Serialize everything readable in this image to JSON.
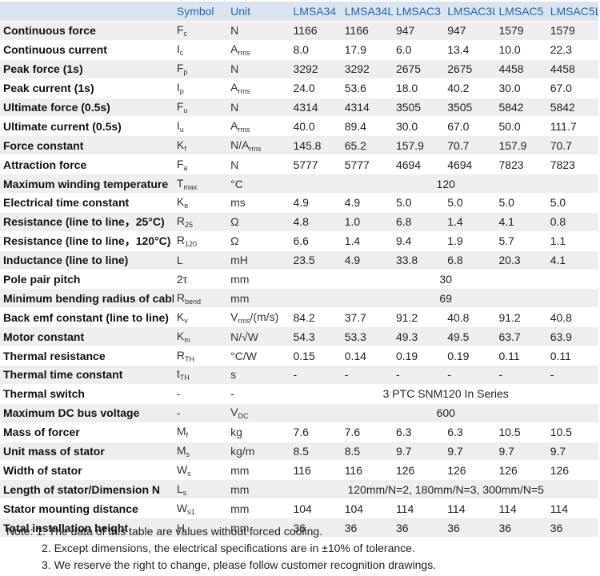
{
  "header": {
    "param": "",
    "symbol": "Symbol",
    "unit": "Unit",
    "models": [
      "LMSA34",
      "LMSA34L",
      "LMSAC3",
      "LMSAC3L",
      "LMSAC5",
      "LMSAC5L"
    ]
  },
  "rows": [
    {
      "param": "Continuous force",
      "sym": "F",
      "sub": "c",
      "unit": "N",
      "unit_sub": "",
      "values": [
        "1166",
        "1166",
        "947",
        "947",
        "1579",
        "1579"
      ]
    },
    {
      "param": "Continuous current",
      "sym": "I",
      "sub": "c",
      "unit": "A",
      "unit_sub": "rms",
      "values": [
        "8.0",
        "17.9",
        "6.0",
        "13.4",
        "10.0",
        "22.3"
      ]
    },
    {
      "param": "Peak force (1s)",
      "sym": "F",
      "sub": "p",
      "unit": "N",
      "unit_sub": "",
      "values": [
        "3292",
        "3292",
        "2675",
        "2675",
        "4458",
        "4458"
      ]
    },
    {
      "param": "Peak current (1s)",
      "sym": "I",
      "sub": "p",
      "unit": "A",
      "unit_sub": "rms",
      "values": [
        "24.0",
        "53.6",
        "18.0",
        "40.2",
        "30.0",
        "67.0"
      ]
    },
    {
      "param": "Ultimate force (0.5s)",
      "sym": "F",
      "sub": "u",
      "unit": "N",
      "unit_sub": "",
      "values": [
        "4314",
        "4314",
        "3505",
        "3505",
        "5842",
        "5842"
      ]
    },
    {
      "param": "Ultimate current (0.5s)",
      "sym": "I",
      "sub": "u",
      "unit": "A",
      "unit_sub": "rms",
      "values": [
        "40.0",
        "89.4",
        "30.0",
        "67.0",
        "50.0",
        "111.7"
      ]
    },
    {
      "param": "Force constant",
      "sym": "K",
      "sub": "f",
      "unit": "N/A",
      "unit_sub": "rms",
      "values": [
        "145.8",
        "65.2",
        "157.9",
        "70.7",
        "157.9",
        "70.7"
      ]
    },
    {
      "param": "Attraction force",
      "sym": "F",
      "sub": "a",
      "unit": "N",
      "unit_sub": "",
      "values": [
        "5777",
        "5777",
        "4694",
        "4694",
        "7823",
        "7823"
      ]
    },
    {
      "param": "Maximum winding temperature",
      "sym": "T",
      "sub": "max",
      "unit": "°C",
      "unit_sub": "",
      "span": "120"
    },
    {
      "param": "Electrical time constant",
      "sym": "K",
      "sub": "e",
      "unit": "ms",
      "unit_sub": "",
      "values": [
        "4.9",
        "4.9",
        "5.0",
        "5.0",
        "5.0",
        "5.0"
      ]
    },
    {
      "param": "Resistance (line to line，25°C)",
      "sym": "R",
      "sub": "25",
      "unit": "Ω",
      "unit_sub": "",
      "values": [
        "4.8",
        "1.0",
        "6.8",
        "1.4",
        "4.1",
        "0.8"
      ]
    },
    {
      "param": "Resistance (line to line，120°C)",
      "sym": "R",
      "sub": "120",
      "unit": "Ω",
      "unit_sub": "",
      "values": [
        "6.6",
        "1.4",
        "9.4",
        "1.9",
        "5.7",
        "1.1"
      ]
    },
    {
      "param": "Inductance (line to line)",
      "sym": "L",
      "sub": "",
      "unit": "mH",
      "unit_sub": "",
      "values": [
        "23.5",
        "4.9",
        "33.8",
        "6.8",
        "20.3",
        "4.1"
      ]
    },
    {
      "param": "Pole pair pitch",
      "sym": "2τ",
      "sub": "",
      "unit": "mm",
      "unit_sub": "",
      "span": "30"
    },
    {
      "param": "Minimum bending radius of cable",
      "sym": "R",
      "sub": "bend",
      "unit": "mm",
      "unit_sub": "",
      "span": "69"
    },
    {
      "param": "Back emf constant (line to line)",
      "sym": "K",
      "sub": "v",
      "unit": "V",
      "unit_sub": "rms",
      "unit_tail": "/(m/s)",
      "values": [
        "84.2",
        "37.7",
        "91.2",
        "40.8",
        "91.2",
        "40.8"
      ]
    },
    {
      "param": "Motor constant",
      "sym": "K",
      "sub": "m",
      "unit": "N/√W",
      "unit_sub": "",
      "values": [
        "54.3",
        "53.3",
        "49.3",
        "49.5",
        "63.7",
        "63.9"
      ]
    },
    {
      "param": "Thermal resistance",
      "sym": "R",
      "sub": "TH",
      "unit": "°C/W",
      "unit_sub": "",
      "values": [
        "0.15",
        "0.14",
        "0.19",
        "0.19",
        "0.11",
        "0.11"
      ]
    },
    {
      "param": "Thermal time constant",
      "sym": "t",
      "sub": "TH",
      "unit": "s",
      "unit_sub": "",
      "values": [
        "-",
        "-",
        "-",
        "-",
        "-",
        "-"
      ]
    },
    {
      "param": "Thermal switch",
      "sym": "-",
      "sub": "",
      "unit": "-",
      "unit_sub": "",
      "span": "3 PTC SNM120 In Series"
    },
    {
      "param": "Maximum DC bus voltage",
      "sym": "-",
      "sub": "",
      "unit": "V",
      "unit_sub": "DC",
      "span": "600"
    },
    {
      "param": "Mass of forcer",
      "sym": "M",
      "sub": "f",
      "unit": "kg",
      "unit_sub": "",
      "values": [
        "7.6",
        "7.6",
        "6.3",
        "6.3",
        "10.5",
        "10.5"
      ]
    },
    {
      "param": "Unit mass of stator",
      "sym": "M",
      "sub": "s",
      "unit": "kg/m",
      "unit_sub": "",
      "values": [
        "8.5",
        "8.5",
        "9.7",
        "9.7",
        "9.7",
        "9.7"
      ]
    },
    {
      "param": "Width of stator",
      "sym": "W",
      "sub": "s",
      "unit": "mm",
      "unit_sub": "",
      "values": [
        "116",
        "116",
        "126",
        "126",
        "126",
        "126"
      ]
    },
    {
      "param": "Length of stator/Dimension N",
      "sym": "L",
      "sub": "s",
      "unit": "mm",
      "unit_sub": "",
      "span": "120mm/N=2, 180mm/N=3, 300mm/N=5"
    },
    {
      "param": "Stator mounting distance",
      "sym": "W",
      "sub": "s1",
      "unit": "mm",
      "unit_sub": "",
      "values": [
        "104",
        "104",
        "114",
        "114",
        "114",
        "114"
      ]
    },
    {
      "param": "Total installation height",
      "sym": "H",
      "sub": "",
      "unit": "mm",
      "unit_sub": "",
      "values": [
        "36",
        "36",
        "36",
        "36",
        "36",
        "36"
      ]
    }
  ],
  "notes": [
    "Note: 1. The  data of this table are values without forced cooling.",
    "2. Except dimensions, the electrical specifications are in ±10% of tolerance.",
    "3. We reserve the right to change, please follow customer recognition drawings."
  ]
}
